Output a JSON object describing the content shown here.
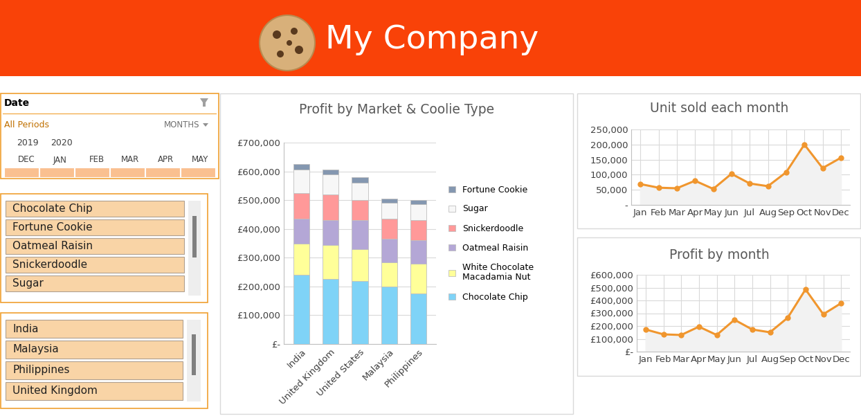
{
  "header": {
    "title": "My Company"
  },
  "slicers": [
    {
      "title": "Date",
      "selection": "All Periods",
      "level": "MONTHS",
      "years": [
        "2019",
        "2020"
      ],
      "months": [
        "DEC",
        "JAN",
        "FEB",
        "MAR",
        "APR",
        "MAY"
      ]
    },
    {
      "items": [
        "Chocolate Chip",
        "Fortune Cookie",
        "Oatmeal Raisin",
        "Snickerdoodle",
        "Sugar"
      ]
    },
    {
      "items": [
        "India",
        "Malaysia",
        "Philippines",
        "United Kingdom"
      ]
    }
  ],
  "chart_data": [
    {
      "type": "bar",
      "stacked": true,
      "title": "Profit by Market & Coolie Type",
      "categories": [
        "India",
        "United Kingdom",
        "United States",
        "Malaysia",
        "Philippines"
      ],
      "series": [
        {
          "name": "Chocolate Chip",
          "color": "#7fd3f7",
          "values": [
            240000,
            225000,
            220000,
            200000,
            175000
          ]
        },
        {
          "name": "White Chocolate Macadamia Nut",
          "color": "#ffff99",
          "values": [
            110000,
            120000,
            110000,
            85000,
            105000
          ]
        },
        {
          "name": "Oatmeal Raisin",
          "color": "#b4a7d6",
          "values": [
            85000,
            85000,
            100000,
            80000,
            82000
          ]
        },
        {
          "name": "Snickerdoodle",
          "color": "#ff9999",
          "values": [
            90000,
            90000,
            70000,
            70000,
            68000
          ]
        },
        {
          "name": "Sugar",
          "color": "#f7f7f7",
          "values": [
            80000,
            70000,
            60000,
            55000,
            55000
          ]
        },
        {
          "name": "Fortune Cookie",
          "color": "#8497b0",
          "values": [
            20000,
            15000,
            20000,
            15000,
            15000
          ]
        }
      ],
      "ylim": [
        0,
        700000
      ],
      "yticks": [
        {
          "value": 0,
          "label": "£-"
        },
        {
          "value": 100000,
          "label": "£100,000"
        },
        {
          "value": 200000,
          "label": "£200,000"
        },
        {
          "value": 300000,
          "label": "£300,000"
        },
        {
          "value": 400000,
          "label": "£400,000"
        },
        {
          "value": 500000,
          "label": "£500,000"
        },
        {
          "value": 600000,
          "label": "£600,000"
        },
        {
          "value": 700000,
          "label": "£700,000"
        }
      ],
      "grid": true,
      "legend": "right"
    },
    {
      "type": "line",
      "title": "Unit sold each month",
      "categories": [
        "Jan",
        "Feb",
        "Mar",
        "Apr",
        "May",
        "Jun",
        "Jul",
        "Aug",
        "Sep",
        "Oct",
        "Nov",
        "Dec"
      ],
      "values": [
        69000,
        57000,
        55000,
        80000,
        53000,
        103000,
        71000,
        62000,
        108000,
        200000,
        122000,
        156000
      ],
      "color": "#f0962e",
      "marker": "circle",
      "ylim": [
        0,
        250000
      ],
      "yticks": [
        {
          "value": 0,
          "label": "-"
        },
        {
          "value": 50000,
          "label": "50,000"
        },
        {
          "value": 100000,
          "label": "100,000"
        },
        {
          "value": 150000,
          "label": "150,000"
        },
        {
          "value": 200000,
          "label": "200,000"
        },
        {
          "value": 250000,
          "label": "250,000"
        }
      ],
      "grid": true
    },
    {
      "type": "line",
      "title": "Profit by month",
      "categories": [
        "Jan",
        "Feb",
        "Mar",
        "Apr",
        "May",
        "Jun",
        "Jul",
        "Aug",
        "Sep",
        "Oct",
        "Nov",
        "Dec"
      ],
      "values": [
        173000,
        135000,
        130000,
        195000,
        130000,
        249000,
        173000,
        151000,
        265000,
        486000,
        292000,
        378000
      ],
      "color": "#f0962e",
      "marker": "circle",
      "ylim": [
        0,
        600000
      ],
      "yticks": [
        {
          "value": 0,
          "label": "£-"
        },
        {
          "value": 100000,
          "label": "£100,000"
        },
        {
          "value": 200000,
          "label": "£200,000"
        },
        {
          "value": 300000,
          "label": "£300,000"
        },
        {
          "value": 400000,
          "label": "£400,000"
        },
        {
          "value": 500000,
          "label": "£500,000"
        },
        {
          "value": 600000,
          "label": "£600,000"
        }
      ],
      "grid": true
    }
  ]
}
